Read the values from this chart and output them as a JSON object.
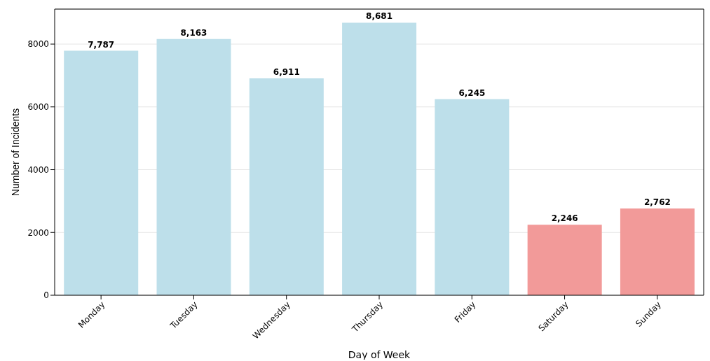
{
  "chart_data": {
    "type": "bar",
    "xlabel": "Day of Week",
    "ylabel": "Number of Incidents",
    "categories": [
      "Monday",
      "Tuesday",
      "Wednesday",
      "Thursday",
      "Friday",
      "Saturday",
      "Sunday"
    ],
    "values": [
      7787,
      8163,
      6911,
      8681,
      6245,
      2246,
      2762
    ],
    "colors": [
      "#bddfea",
      "#bddfea",
      "#bddfea",
      "#bddfea",
      "#bddfea",
      "#f29a99",
      "#f29a99"
    ],
    "value_labels": [
      "7,787",
      "8,163",
      "6,911",
      "8,681",
      "6,245",
      "2,246",
      "2,762"
    ],
    "ylim": [
      0,
      9115
    ],
    "yticks": [
      0,
      2000,
      4000,
      6000,
      8000
    ],
    "grid": "y"
  }
}
